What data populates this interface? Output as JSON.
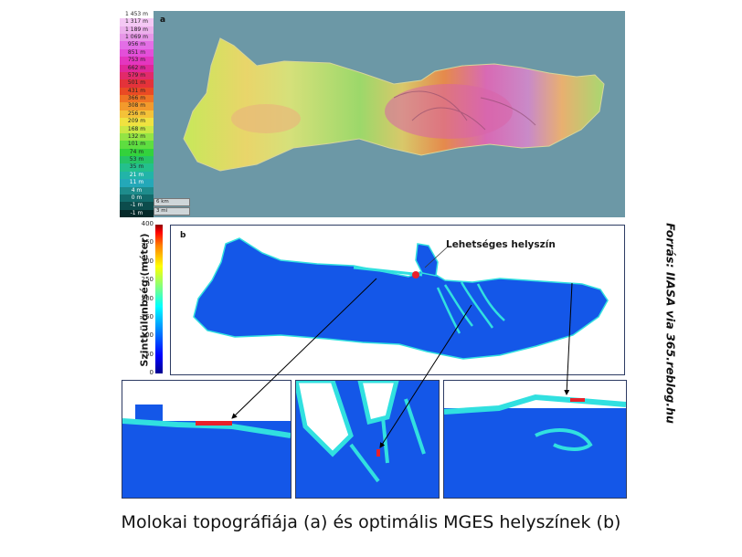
{
  "panel_a": {
    "letter": "a",
    "legend": [
      {
        "label": "1 453 m",
        "color": "#ffffff"
      },
      {
        "label": "1 317 m",
        "color": "#f4c8f4"
      },
      {
        "label": "1 189 m",
        "color": "#ecb0ec"
      },
      {
        "label": "1 069 m",
        "color": "#e796e8"
      },
      {
        "label": "956 m",
        "color": "#e36ee6"
      },
      {
        "label": "851 m",
        "color": "#e34fd9"
      },
      {
        "label": "753 m",
        "color": "#e436bf"
      },
      {
        "label": "662 m",
        "color": "#e0289a"
      },
      {
        "label": "579 m",
        "color": "#e22a6a"
      },
      {
        "label": "501 m",
        "color": "#e4323a"
      },
      {
        "label": "431 m",
        "color": "#ea4a24"
      },
      {
        "label": "366 m",
        "color": "#f07424"
      },
      {
        "label": "308 m",
        "color": "#f39a2c"
      },
      {
        "label": "256 m",
        "color": "#f4c238"
      },
      {
        "label": "209 m",
        "color": "#f0e240"
      },
      {
        "label": "168 m",
        "color": "#c9e844"
      },
      {
        "label": "132 m",
        "color": "#94e444"
      },
      {
        "label": "101 m",
        "color": "#5ede40"
      },
      {
        "label": "74 m",
        "color": "#33d23c"
      },
      {
        "label": "53 m",
        "color": "#26c466"
      },
      {
        "label": "35 m",
        "color": "#24c08c"
      },
      {
        "label": "21 m",
        "color": "#22b4a8"
      },
      {
        "label": "11 m",
        "color": "#24a8b8"
      },
      {
        "label": "4 m",
        "color": "#1e8c8c"
      },
      {
        "label": "0 m",
        "color": "#126a6a"
      },
      {
        "label": "-1 m",
        "color": "#0c4c4c"
      },
      {
        "label": "-1 m",
        "color": "#062a2a"
      }
    ],
    "scale": [
      "6 km",
      "3 mi"
    ]
  },
  "panel_b": {
    "letter": "b",
    "colorbar_ticks": [
      "400",
      "350",
      "300",
      "250",
      "200",
      "150",
      "100",
      "50",
      "0"
    ],
    "colorbar_label": "Szintkülönbség (méter)",
    "location_label": "Lehetséges helyszín"
  },
  "source": "Forrás: IIASA via 365.reblog.hu",
  "caption": "Molokai topográfiája (a) és optimális MGES helyszínek (b)",
  "colors": {
    "sea_a": "#6c98a6",
    "frame": "#2d3b63",
    "low": "#1457e8",
    "ridge": "#31e0e0",
    "peak": "#e8202a"
  }
}
